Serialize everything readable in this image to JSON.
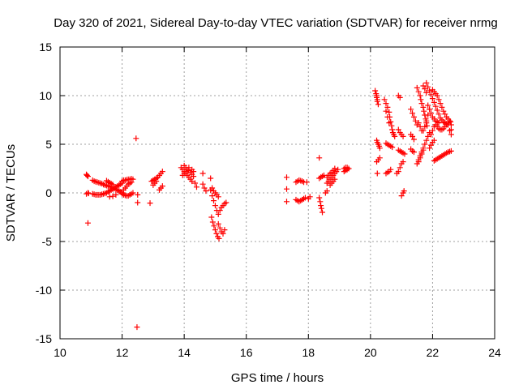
{
  "chart_data": {
    "type": "scatter",
    "title": "Day 320 of 2021, Sidereal Day-to-day VTEC variation (SDTVAR) for receiver nrmg",
    "xlabel": "GPS time / hours",
    "ylabel": "SDTVAR / TECUs",
    "xlim": [
      10,
      24
    ],
    "ylim": [
      -15,
      15
    ],
    "xticks": [
      "10",
      "12",
      "14",
      "16",
      "18",
      "20",
      "22",
      "24"
    ],
    "yticks": [
      "15",
      "10",
      "5",
      "0",
      "-5",
      "-10",
      "-15"
    ],
    "grid": true,
    "marker": "plus",
    "color": "#ff0000",
    "points": [
      [
        10.85,
        1.9
      ],
      [
        10.87,
        1.8
      ],
      [
        10.9,
        1.7
      ],
      [
        10.85,
        -0.1
      ],
      [
        10.9,
        0.0
      ],
      [
        10.92,
        -0.05
      ],
      [
        10.9,
        -3.1
      ],
      [
        11.05,
        1.3
      ],
      [
        11.1,
        1.2
      ],
      [
        11.15,
        1.15
      ],
      [
        11.2,
        1.1
      ],
      [
        11.25,
        1.05
      ],
      [
        11.3,
        1.0
      ],
      [
        11.35,
        0.95
      ],
      [
        11.4,
        0.85
      ],
      [
        11.45,
        0.8
      ],
      [
        11.5,
        0.75
      ],
      [
        11.55,
        0.7
      ],
      [
        11.6,
        0.65
      ],
      [
        11.65,
        0.6
      ],
      [
        11.7,
        0.5
      ],
      [
        11.75,
        0.45
      ],
      [
        11.8,
        0.35
      ],
      [
        11.85,
        0.3
      ],
      [
        11.9,
        0.2
      ],
      [
        11.95,
        0.1
      ],
      [
        12.0,
        0.0
      ],
      [
        11.05,
        -0.1
      ],
      [
        11.1,
        -0.15
      ],
      [
        11.15,
        -0.2
      ],
      [
        11.2,
        -0.2
      ],
      [
        11.25,
        -0.2
      ],
      [
        11.3,
        -0.2
      ],
      [
        11.35,
        -0.15
      ],
      [
        11.4,
        -0.1
      ],
      [
        11.45,
        -0.05
      ],
      [
        11.5,
        0.0
      ],
      [
        11.55,
        0.1
      ],
      [
        11.6,
        0.2
      ],
      [
        11.65,
        0.3
      ],
      [
        11.7,
        0.4
      ],
      [
        11.75,
        0.5
      ],
      [
        11.8,
        0.6
      ],
      [
        11.85,
        0.7
      ],
      [
        11.9,
        0.8
      ],
      [
        11.95,
        0.9
      ],
      [
        12.0,
        1.0
      ],
      [
        11.5,
        1.25
      ],
      [
        11.55,
        1.15
      ],
      [
        11.6,
        1.05
      ],
      [
        11.65,
        0.95
      ],
      [
        11.7,
        0.85
      ],
      [
        11.6,
        -0.4
      ],
      [
        11.7,
        -0.35
      ],
      [
        11.8,
        -0.2
      ],
      [
        12.0,
        1.2
      ],
      [
        12.05,
        1.3
      ],
      [
        12.1,
        1.3
      ],
      [
        12.15,
        1.35
      ],
      [
        12.2,
        1.4
      ],
      [
        12.25,
        1.4
      ],
      [
        12.3,
        1.45
      ],
      [
        12.35,
        1.4
      ],
      [
        12.0,
        -0.1
      ],
      [
        12.05,
        -0.2
      ],
      [
        12.1,
        -0.25
      ],
      [
        12.15,
        -0.3
      ],
      [
        12.2,
        -0.3
      ],
      [
        12.25,
        -0.2
      ],
      [
        12.3,
        -0.1
      ],
      [
        12.35,
        0.0
      ],
      [
        12.05,
        0.3
      ],
      [
        12.1,
        0.5
      ],
      [
        12.15,
        0.7
      ],
      [
        12.2,
        0.9
      ],
      [
        12.25,
        1.0
      ],
      [
        12.3,
        1.1
      ],
      [
        12.45,
        5.6
      ],
      [
        12.5,
        -1.0
      ],
      [
        12.5,
        -0.2
      ],
      [
        12.48,
        -13.8
      ],
      [
        12.9,
        -1.05
      ],
      [
        12.95,
        1.2
      ],
      [
        13.0,
        1.3
      ],
      [
        13.05,
        1.4
      ],
      [
        13.1,
        1.5
      ],
      [
        13.15,
        1.6
      ],
      [
        13.2,
        1.8
      ],
      [
        13.25,
        2.0
      ],
      [
        13.3,
        2.2
      ],
      [
        13.0,
        0.8
      ],
      [
        13.05,
        1.0
      ],
      [
        13.1,
        1.2
      ],
      [
        13.2,
        0.3
      ],
      [
        13.25,
        0.5
      ],
      [
        13.3,
        0.7
      ],
      [
        13.9,
        2.6
      ],
      [
        13.95,
        2.4
      ],
      [
        14.0,
        2.2
      ],
      [
        14.05,
        2.0
      ],
      [
        14.1,
        1.8
      ],
      [
        14.15,
        1.6
      ],
      [
        14.2,
        1.4
      ],
      [
        14.25,
        1.2
      ],
      [
        13.95,
        1.8
      ],
      [
        14.0,
        2.0
      ],
      [
        14.05,
        2.2
      ],
      [
        14.1,
        2.4
      ],
      [
        14.15,
        2.3
      ],
      [
        14.2,
        2.1
      ],
      [
        14.25,
        1.9
      ],
      [
        14.3,
        1.7
      ],
      [
        14.0,
        2.8
      ],
      [
        14.05,
        2.6
      ],
      [
        14.15,
        2.6
      ],
      [
        14.25,
        2.4
      ],
      [
        14.3,
        2.2
      ],
      [
        14.35,
        1.0
      ],
      [
        14.4,
        0.6
      ],
      [
        14.6,
        2.0
      ],
      [
        14.6,
        0.9
      ],
      [
        14.65,
        0.5
      ],
      [
        14.7,
        0.2
      ],
      [
        14.85,
        1.5
      ],
      [
        14.9,
        0.5
      ],
      [
        14.95,
        0.2
      ],
      [
        15.0,
        0.0
      ],
      [
        15.05,
        -0.2
      ],
      [
        15.1,
        -0.4
      ],
      [
        14.85,
        0.3
      ],
      [
        14.9,
        -0.3
      ],
      [
        14.95,
        -0.8
      ],
      [
        15.0,
        -1.3
      ],
      [
        15.05,
        -1.8
      ],
      [
        15.1,
        -2.2
      ],
      [
        14.88,
        -2.5
      ],
      [
        14.92,
        -3.0
      ],
      [
        14.96,
        -3.4
      ],
      [
        15.0,
        -3.8
      ],
      [
        15.04,
        -4.2
      ],
      [
        15.08,
        -4.5
      ],
      [
        15.12,
        -4.7
      ],
      [
        15.1,
        -3.2
      ],
      [
        15.15,
        -3.6
      ],
      [
        15.2,
        -4.0
      ],
      [
        15.25,
        -4.2
      ],
      [
        15.3,
        -3.8
      ],
      [
        15.15,
        -1.8
      ],
      [
        15.2,
        -1.5
      ],
      [
        15.25,
        -1.3
      ],
      [
        15.3,
        -1.1
      ],
      [
        15.35,
        -1.0
      ],
      [
        17.3,
        1.6
      ],
      [
        17.3,
        0.4
      ],
      [
        17.3,
        -0.9
      ],
      [
        17.6,
        1.1
      ],
      [
        17.65,
        1.2
      ],
      [
        17.7,
        1.3
      ],
      [
        17.75,
        1.25
      ],
      [
        17.8,
        1.2
      ],
      [
        17.85,
        1.1
      ],
      [
        17.6,
        -0.7
      ],
      [
        17.65,
        -0.8
      ],
      [
        17.7,
        -0.9
      ],
      [
        17.75,
        -0.8
      ],
      [
        17.8,
        -0.7
      ],
      [
        17.85,
        -0.6
      ],
      [
        17.9,
        -0.5
      ],
      [
        17.95,
        1.1
      ],
      [
        18.0,
        -0.6
      ],
      [
        18.05,
        -0.4
      ],
      [
        18.35,
        3.6
      ],
      [
        18.35,
        1.5
      ],
      [
        18.4,
        1.6
      ],
      [
        18.45,
        1.7
      ],
      [
        18.5,
        1.8
      ],
      [
        18.35,
        -0.5
      ],
      [
        18.38,
        -0.9
      ],
      [
        18.4,
        -1.3
      ],
      [
        18.42,
        -1.6
      ],
      [
        18.45,
        -2.0
      ],
      [
        18.6,
        1.0
      ],
      [
        18.65,
        1.2
      ],
      [
        18.7,
        1.4
      ],
      [
        18.75,
        1.6
      ],
      [
        18.8,
        1.8
      ],
      [
        18.85,
        2.0
      ],
      [
        18.9,
        2.2
      ],
      [
        18.95,
        2.4
      ],
      [
        18.6,
        1.6
      ],
      [
        18.65,
        1.8
      ],
      [
        18.7,
        2.0
      ],
      [
        18.75,
        2.1
      ],
      [
        18.8,
        2.3
      ],
      [
        18.85,
        2.5
      ],
      [
        18.7,
        0.8
      ],
      [
        18.75,
        1.0
      ],
      [
        18.8,
        1.2
      ],
      [
        18.85,
        1.4
      ],
      [
        18.55,
        0.0
      ],
      [
        18.6,
        0.2
      ],
      [
        19.15,
        2.2
      ],
      [
        19.2,
        2.3
      ],
      [
        19.25,
        2.4
      ],
      [
        19.3,
        2.5
      ],
      [
        19.15,
        2.5
      ],
      [
        19.2,
        2.6
      ],
      [
        19.25,
        2.6
      ],
      [
        20.15,
        10.5
      ],
      [
        20.18,
        10.2
      ],
      [
        20.2,
        9.8
      ],
      [
        20.22,
        9.4
      ],
      [
        20.25,
        9.1
      ],
      [
        20.2,
        10.0
      ],
      [
        20.22,
        9.6
      ],
      [
        20.2,
        5.4
      ],
      [
        20.22,
        5.2
      ],
      [
        20.25,
        5.0
      ],
      [
        20.28,
        4.8
      ],
      [
        20.3,
        4.6
      ],
      [
        20.2,
        3.2
      ],
      [
        20.25,
        3.4
      ],
      [
        20.3,
        3.6
      ],
      [
        20.22,
        2.0
      ],
      [
        20.45,
        9.6
      ],
      [
        20.5,
        9.2
      ],
      [
        20.55,
        8.8
      ],
      [
        20.6,
        8.3
      ],
      [
        20.62,
        7.8
      ],
      [
        20.65,
        7.3
      ],
      [
        20.68,
        6.9
      ],
      [
        20.7,
        6.5
      ],
      [
        20.72,
        6.2
      ],
      [
        20.75,
        6.0
      ],
      [
        20.78,
        5.8
      ],
      [
        20.5,
        8.4
      ],
      [
        20.55,
        7.8
      ],
      [
        20.6,
        7.2
      ],
      [
        20.5,
        5.1
      ],
      [
        20.55,
        5.0
      ],
      [
        20.6,
        4.9
      ],
      [
        20.65,
        4.8
      ],
      [
        20.7,
        4.7
      ],
      [
        20.5,
        2.0
      ],
      [
        20.55,
        2.1
      ],
      [
        20.6,
        2.2
      ],
      [
        20.65,
        2.4
      ],
      [
        20.9,
        10.0
      ],
      [
        20.95,
        9.8
      ],
      [
        20.9,
        6.5
      ],
      [
        20.95,
        6.2
      ],
      [
        21.0,
        6.0
      ],
      [
        21.05,
        5.8
      ],
      [
        20.9,
        4.4
      ],
      [
        20.95,
        4.3
      ],
      [
        21.0,
        4.2
      ],
      [
        21.05,
        4.1
      ],
      [
        21.1,
        4.0
      ],
      [
        20.85,
        2.0
      ],
      [
        20.9,
        2.2
      ],
      [
        20.95,
        2.6
      ],
      [
        21.0,
        3.0
      ],
      [
        21.05,
        3.2
      ],
      [
        21.0,
        -0.3
      ],
      [
        21.05,
        0.0
      ],
      [
        21.08,
        0.2
      ],
      [
        21.3,
        8.6
      ],
      [
        21.35,
        8.2
      ],
      [
        21.4,
        7.8
      ],
      [
        21.45,
        7.4
      ],
      [
        21.5,
        7.0
      ],
      [
        21.3,
        6.0
      ],
      [
        21.35,
        5.8
      ],
      [
        21.4,
        5.5
      ],
      [
        21.3,
        4.5
      ],
      [
        21.35,
        4.3
      ],
      [
        21.4,
        4.2
      ],
      [
        21.5,
        10.8
      ],
      [
        21.55,
        10.4
      ],
      [
        21.6,
        10.0
      ],
      [
        21.62,
        9.6
      ],
      [
        21.65,
        9.2
      ],
      [
        21.7,
        8.8
      ],
      [
        21.72,
        8.4
      ],
      [
        21.75,
        8.0
      ],
      [
        21.78,
        7.6
      ],
      [
        21.8,
        7.2
      ],
      [
        21.82,
        6.9
      ],
      [
        21.55,
        7.2
      ],
      [
        21.6,
        6.8
      ],
      [
        21.65,
        6.4
      ],
      [
        21.7,
        6.4
      ],
      [
        21.75,
        6.8
      ],
      [
        21.8,
        7.4
      ],
      [
        21.85,
        8.0
      ],
      [
        21.9,
        8.6
      ],
      [
        21.55,
        3.4
      ],
      [
        21.6,
        3.8
      ],
      [
        21.65,
        4.2
      ],
      [
        21.7,
        4.6
      ],
      [
        21.75,
        5.0
      ],
      [
        21.8,
        5.4
      ],
      [
        21.85,
        5.8
      ],
      [
        21.9,
        6.2
      ],
      [
        21.5,
        3.0
      ],
      [
        21.55,
        3.2
      ],
      [
        21.6,
        3.6
      ],
      [
        21.65,
        4.0
      ],
      [
        21.7,
        4.4
      ],
      [
        21.8,
        11.3
      ],
      [
        21.85,
        10.9
      ],
      [
        21.9,
        10.5
      ],
      [
        21.95,
        10.1
      ],
      [
        22.0,
        9.7
      ],
      [
        22.05,
        9.3
      ],
      [
        22.1,
        8.9
      ],
      [
        22.15,
        8.5
      ],
      [
        22.2,
        8.1
      ],
      [
        22.25,
        7.7
      ],
      [
        22.3,
        7.5
      ],
      [
        22.35,
        7.3
      ],
      [
        22.4,
        7.2
      ],
      [
        22.45,
        7.1
      ],
      [
        22.5,
        7.0
      ],
      [
        21.85,
        9.0
      ],
      [
        21.9,
        8.6
      ],
      [
        21.95,
        8.2
      ],
      [
        22.0,
        7.8
      ],
      [
        22.05,
        7.6
      ],
      [
        22.1,
        7.4
      ],
      [
        22.15,
        7.3
      ],
      [
        22.2,
        7.2
      ],
      [
        22.0,
        10.6
      ],
      [
        22.05,
        10.4
      ],
      [
        22.1,
        10.2
      ],
      [
        22.15,
        10.0
      ],
      [
        22.2,
        9.6
      ],
      [
        22.25,
        9.2
      ],
      [
        22.3,
        8.8
      ],
      [
        22.35,
        8.4
      ],
      [
        22.4,
        8.1
      ],
      [
        22.45,
        7.8
      ],
      [
        22.5,
        7.6
      ],
      [
        22.55,
        7.4
      ],
      [
        21.95,
        6.0
      ],
      [
        22.0,
        6.4
      ],
      [
        22.05,
        6.8
      ],
      [
        22.1,
        7.0
      ],
      [
        22.15,
        6.8
      ],
      [
        22.2,
        6.6
      ],
      [
        22.25,
        6.5
      ],
      [
        22.3,
        6.5
      ],
      [
        22.35,
        6.6
      ],
      [
        22.4,
        6.8
      ],
      [
        22.45,
        7.0
      ],
      [
        22.5,
        7.2
      ],
      [
        21.9,
        4.6
      ],
      [
        21.95,
        4.9
      ],
      [
        22.0,
        5.2
      ],
      [
        22.05,
        5.4
      ],
      [
        22.05,
        3.3
      ],
      [
        22.1,
        3.4
      ],
      [
        22.15,
        3.5
      ],
      [
        22.2,
        3.6
      ],
      [
        22.25,
        3.7
      ],
      [
        22.3,
        3.8
      ],
      [
        22.35,
        3.9
      ],
      [
        22.4,
        4.0
      ],
      [
        22.45,
        4.1
      ],
      [
        22.5,
        4.2
      ],
      [
        22.55,
        4.25
      ],
      [
        22.6,
        4.3
      ],
      [
        22.55,
        6.4
      ],
      [
        22.6,
        6.5
      ],
      [
        22.58,
        7.3
      ],
      [
        22.6,
        7.0
      ],
      [
        22.6,
        6.0
      ],
      [
        21.7,
        11.0
      ],
      [
        21.75,
        10.7
      ],
      [
        21.8,
        10.3
      ]
    ]
  }
}
